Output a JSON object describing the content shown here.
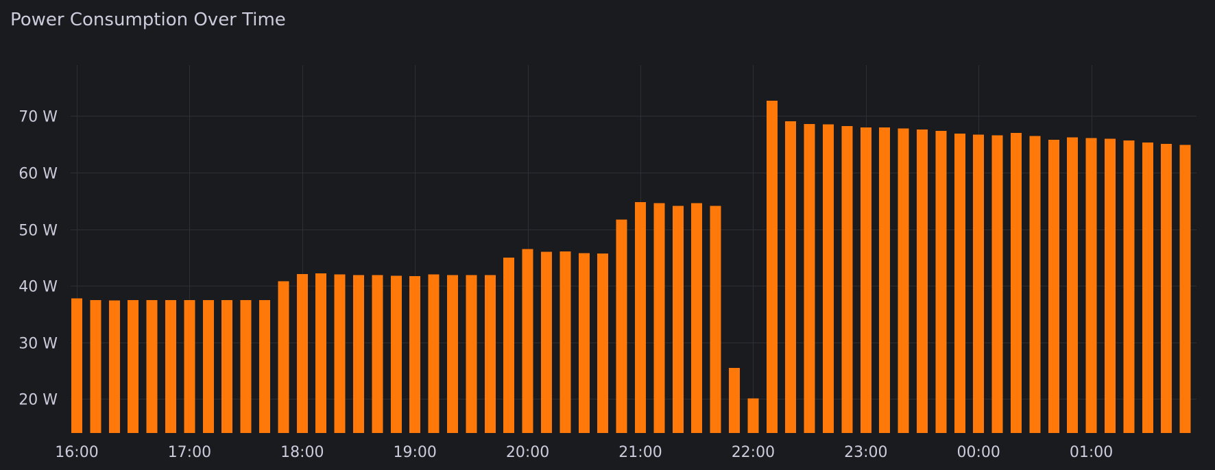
{
  "panel": {
    "title": "Power Consumption Over Time"
  },
  "chart_data": {
    "type": "bar",
    "title": "Power Consumption Over Time",
    "xlabel": "",
    "ylabel": "",
    "bar_color": "#ff780a",
    "grid": true,
    "unit": "W",
    "ylim": [
      14,
      79
    ],
    "y_ticks": [
      {
        "value": 20,
        "label": "20 W"
      },
      {
        "value": 30,
        "label": "30 W"
      },
      {
        "value": 40,
        "label": "40 W"
      },
      {
        "value": 50,
        "label": "50 W"
      },
      {
        "value": 60,
        "label": "60 W"
      },
      {
        "value": 70,
        "label": "70 W"
      }
    ],
    "x_ticks": [
      {
        "index": 0,
        "label": "16:00"
      },
      {
        "index": 6,
        "label": "17:00"
      },
      {
        "index": 12,
        "label": "18:00"
      },
      {
        "index": 18,
        "label": "19:00"
      },
      {
        "index": 24,
        "label": "20:00"
      },
      {
        "index": 30,
        "label": "21:00"
      },
      {
        "index": 36,
        "label": "22:00"
      },
      {
        "index": 42,
        "label": "23:00"
      },
      {
        "index": 48,
        "label": "00:00"
      },
      {
        "index": 54,
        "label": "01:00"
      }
    ],
    "x_grid_indices": [
      0,
      6,
      12,
      18,
      24,
      30,
      36,
      42,
      48,
      54
    ],
    "values": [
      37.8,
      37.5,
      37.4,
      37.5,
      37.5,
      37.5,
      37.5,
      37.5,
      37.5,
      37.5,
      37.5,
      40.8,
      42.1,
      42.2,
      42.0,
      41.9,
      41.9,
      41.8,
      41.7,
      42.0,
      41.9,
      41.9,
      41.9,
      45.0,
      46.5,
      46.0,
      46.1,
      45.8,
      45.7,
      51.7,
      54.8,
      54.6,
      54.1,
      54.6,
      54.1,
      25.5,
      20.1,
      72.7,
      69.1,
      68.6,
      68.5,
      68.2,
      68.0,
      68.0,
      67.8,
      67.6,
      67.4,
      66.9,
      66.7,
      66.6,
      67.0,
      66.5,
      65.8,
      66.2,
      66.1,
      66.0,
      65.7,
      65.3,
      65.1,
      64.9
    ]
  }
}
